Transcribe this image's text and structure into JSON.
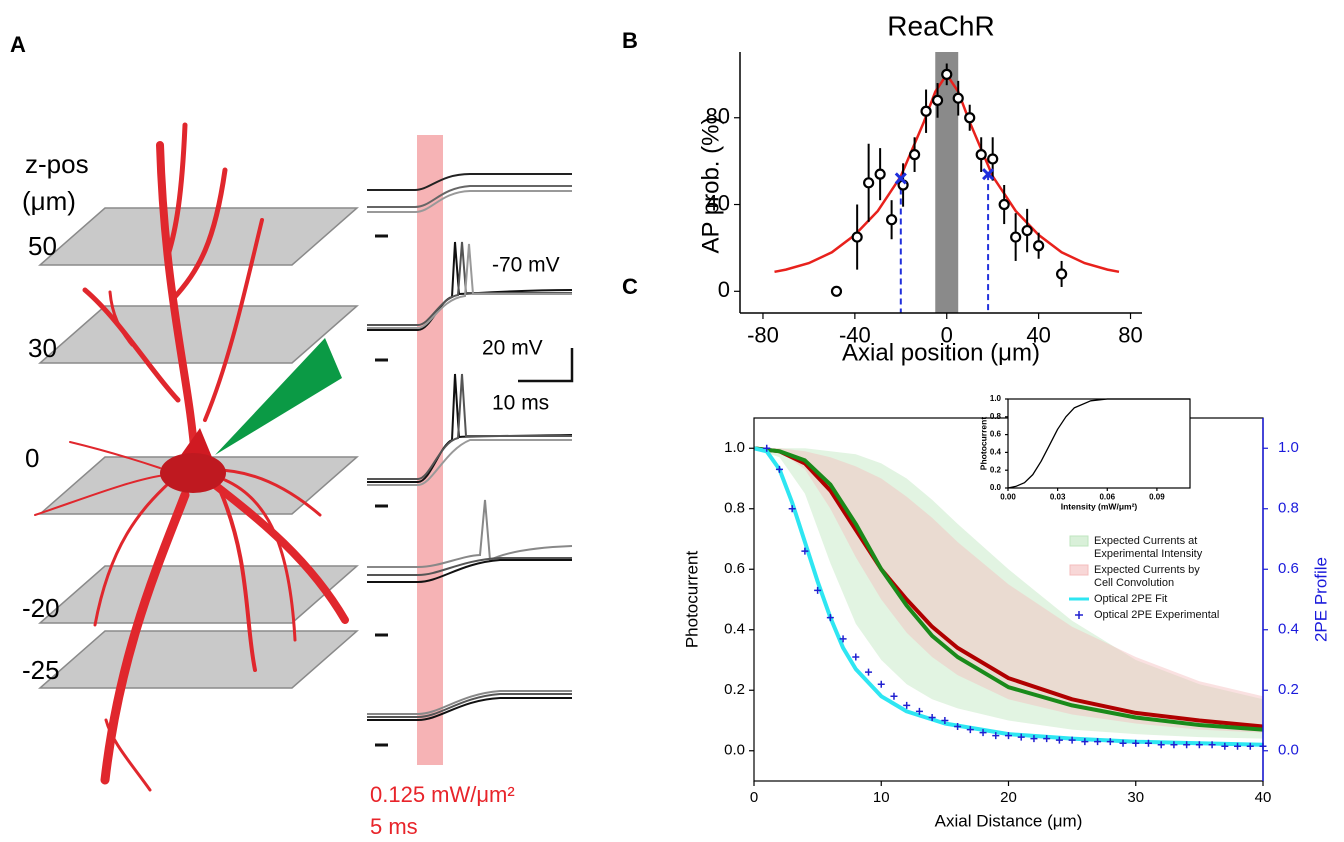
{
  "panel_labels": [
    "A",
    "B",
    "C"
  ],
  "panel_a": {
    "z_label": "z-pos",
    "z_unit": "(μm)",
    "depths": [
      50,
      30,
      0,
      -20,
      -25
    ],
    "holding": "-70 mV",
    "scale_voltage": "20 mV",
    "scale_time": "10 ms",
    "power": "0.125 mW/μm²",
    "duration": "5 ms"
  },
  "chart_data": [
    {
      "type": "scatter",
      "title": "ReaChR",
      "xlabel": "Axial position (μm)",
      "ylabel": "AP prob. (%)",
      "xlim": [
        -90,
        85
      ],
      "xticks": [
        -80,
        -40,
        0,
        40,
        80
      ],
      "ylim": [
        -10,
        108
      ],
      "yticks": [
        0,
        40,
        80
      ],
      "points": {
        "color": "#000000",
        "x": [
          -48,
          -39,
          -34,
          -29,
          -24,
          -19,
          -14,
          -9,
          -4,
          0,
          5,
          10,
          15,
          20,
          25,
          30,
          35,
          40,
          50
        ],
        "values": [
          0,
          25,
          50,
          54,
          33,
          49,
          63,
          83,
          88,
          100,
          89,
          80,
          63,
          61,
          40,
          25,
          28,
          21,
          8
        ],
        "errors": [
          null,
          15,
          18,
          12,
          9,
          10,
          8,
          10,
          8,
          5,
          8,
          6,
          8,
          10,
          9,
          11,
          10,
          6,
          6
        ]
      },
      "fit": {
        "color": "#e8211c",
        "x": [
          -75,
          -70,
          -60,
          -50,
          -40,
          -30,
          -20,
          -10,
          -5,
          0,
          5,
          10,
          20,
          30,
          40,
          50,
          60,
          70,
          75
        ],
        "values": [
          9,
          10,
          13,
          18,
          26,
          37,
          53,
          78,
          92,
          100,
          92,
          78,
          53,
          37,
          26,
          18,
          13,
          10,
          9
        ]
      },
      "band": {
        "color": "#8a8a8a",
        "x": [
          -5,
          5
        ]
      },
      "half_max": {
        "color": "#1f2fdc",
        "x": [
          -20,
          18
        ],
        "values": [
          52,
          54
        ]
      }
    },
    {
      "type": "line",
      "xlabel": "Axial Distance (μm)",
      "ylabel": "Photocurrent",
      "y2label": "2PE Profile",
      "y2color": "#1a1adb",
      "xlim": [
        0,
        40
      ],
      "xticks": [
        0,
        10,
        20,
        30,
        40
      ],
      "ylim": [
        -0.1,
        1.1
      ],
      "yticks": [
        {
          "value": 0,
          "label": "0.0"
        },
        {
          "value": 0.2,
          "label": "0.2"
        },
        {
          "value": 0.4,
          "label": "0.4"
        },
        {
          "value": 0.6,
          "label": "0.6"
        },
        {
          "value": 0.8,
          "label": "0.8"
        },
        {
          "value": 1,
          "label": "1.0"
        }
      ],
      "y2lim": [
        -0.1,
        1.1
      ],
      "y2ticks": [
        {
          "value": 0,
          "label": "0.0"
        },
        {
          "value": 0.2,
          "label": "0.2"
        },
        {
          "value": 0.4,
          "label": "0.4"
        },
        {
          "value": 0.6,
          "label": "0.6"
        },
        {
          "value": 0.8,
          "label": "0.8"
        },
        {
          "value": 1,
          "label": "1.0"
        }
      ],
      "series": [
        {
          "name": "Expected Currents at Experimental Intensity",
          "color": "#bfe6bf",
          "x": [
            0,
            2,
            4,
            6,
            8,
            10,
            12,
            14,
            16,
            20,
            25,
            30,
            35,
            40
          ],
          "values": [
            1.0,
            0.97,
            0.85,
            0.62,
            0.42,
            0.3,
            0.22,
            0.17,
            0.14,
            0.1,
            0.07,
            0.055,
            0.045,
            0.04
          ],
          "upper": [
            1.0,
            1.0,
            1.0,
            0.99,
            0.98,
            0.95,
            0.9,
            0.83,
            0.75,
            0.6,
            0.43,
            0.3,
            0.22,
            0.17
          ]
        },
        {
          "name": "Expected Currents by Cell Convolution",
          "color": "#f4bcbc",
          "x": [
            0,
            2,
            4,
            6,
            8,
            10,
            12,
            14,
            16,
            20,
            25,
            30,
            35,
            40
          ],
          "values": [
            1.0,
            0.99,
            0.93,
            0.8,
            0.64,
            0.5,
            0.39,
            0.31,
            0.25,
            0.17,
            0.12,
            0.09,
            0.07,
            0.06
          ],
          "upper": [
            1.0,
            1.0,
            0.99,
            0.97,
            0.94,
            0.9,
            0.84,
            0.77,
            0.69,
            0.55,
            0.41,
            0.31,
            0.23,
            0.18
          ]
        },
        {
          "color": "#b00000",
          "x": [
            0,
            2,
            4,
            6,
            8,
            10,
            12,
            14,
            16,
            20,
            25,
            30,
            35,
            40
          ],
          "values": [
            1.0,
            0.99,
            0.95,
            0.86,
            0.73,
            0.6,
            0.5,
            0.41,
            0.34,
            0.24,
            0.17,
            0.125,
            0.1,
            0.08
          ]
        },
        {
          "color": "#1a8a1a",
          "x": [
            0,
            2,
            4,
            6,
            8,
            10,
            12,
            14,
            16,
            20,
            25,
            30,
            35,
            40
          ],
          "values": [
            1.0,
            0.99,
            0.96,
            0.88,
            0.75,
            0.6,
            0.48,
            0.38,
            0.31,
            0.21,
            0.15,
            0.11,
            0.085,
            0.07
          ]
        },
        {
          "name": "Optical 2PE Fit",
          "color": "#2ee6f2",
          "axis": "y2",
          "x": [
            0,
            1,
            2,
            3,
            4,
            5,
            6,
            7,
            8,
            10,
            12,
            15,
            20,
            25,
            30,
            35,
            40
          ],
          "values": [
            1.0,
            0.99,
            0.93,
            0.82,
            0.69,
            0.56,
            0.44,
            0.34,
            0.27,
            0.18,
            0.13,
            0.09,
            0.055,
            0.04,
            0.03,
            0.025,
            0.02
          ]
        },
        {
          "name": "Optical 2PE Experimental",
          "color": "#2020d0",
          "axis": "y2",
          "marker": "+",
          "x": [
            1,
            2,
            3,
            4,
            5,
            6,
            7,
            8,
            9,
            10,
            11,
            12,
            13,
            14,
            15,
            16,
            17,
            18,
            19,
            20,
            21,
            22,
            23,
            24,
            25,
            26,
            27,
            28,
            29,
            30,
            31,
            32,
            33,
            34,
            35,
            36,
            37,
            38,
            39,
            40
          ],
          "values": [
            1.0,
            0.93,
            0.8,
            0.66,
            0.53,
            0.44,
            0.37,
            0.31,
            0.26,
            0.22,
            0.18,
            0.15,
            0.13,
            0.11,
            0.1,
            0.08,
            0.07,
            0.06,
            0.05,
            0.05,
            0.045,
            0.04,
            0.04,
            0.035,
            0.035,
            0.03,
            0.03,
            0.03,
            0.025,
            0.025,
            0.025,
            0.02,
            0.02,
            0.02,
            0.02,
            0.02,
            0.015,
            0.015,
            0.015,
            0.015
          ]
        }
      ]
    },
    {
      "type": "line",
      "xlabel": "Intensity (mW/μm²)",
      "ylabel": "Photocurrent",
      "xlim": [
        0,
        0.11
      ],
      "xticks": [
        {
          "value": 0,
          "label": "0.00"
        },
        {
          "value": 0.03,
          "label": "0.03"
        },
        {
          "value": 0.06,
          "label": "0.06"
        },
        {
          "value": 0.09,
          "label": "0.09"
        }
      ],
      "ylim": [
        0,
        1
      ],
      "yticks": [
        {
          "value": 0,
          "label": "0.0"
        },
        {
          "value": 0.2,
          "label": "0.2"
        },
        {
          "value": 0.4,
          "label": "0.4"
        },
        {
          "value": 0.6,
          "label": "0.6"
        },
        {
          "value": 0.8,
          "label": "0.8"
        },
        {
          "value": 1,
          "label": "1.0"
        }
      ],
      "series": [
        {
          "color": "#000000",
          "x": [
            0,
            0.005,
            0.01,
            0.015,
            0.02,
            0.025,
            0.03,
            0.035,
            0.04,
            0.05,
            0.06,
            0.08,
            0.11
          ],
          "values": [
            0,
            0.02,
            0.06,
            0.15,
            0.3,
            0.48,
            0.66,
            0.8,
            0.9,
            0.98,
            1.0,
            1.0,
            1.0
          ]
        }
      ]
    }
  ]
}
